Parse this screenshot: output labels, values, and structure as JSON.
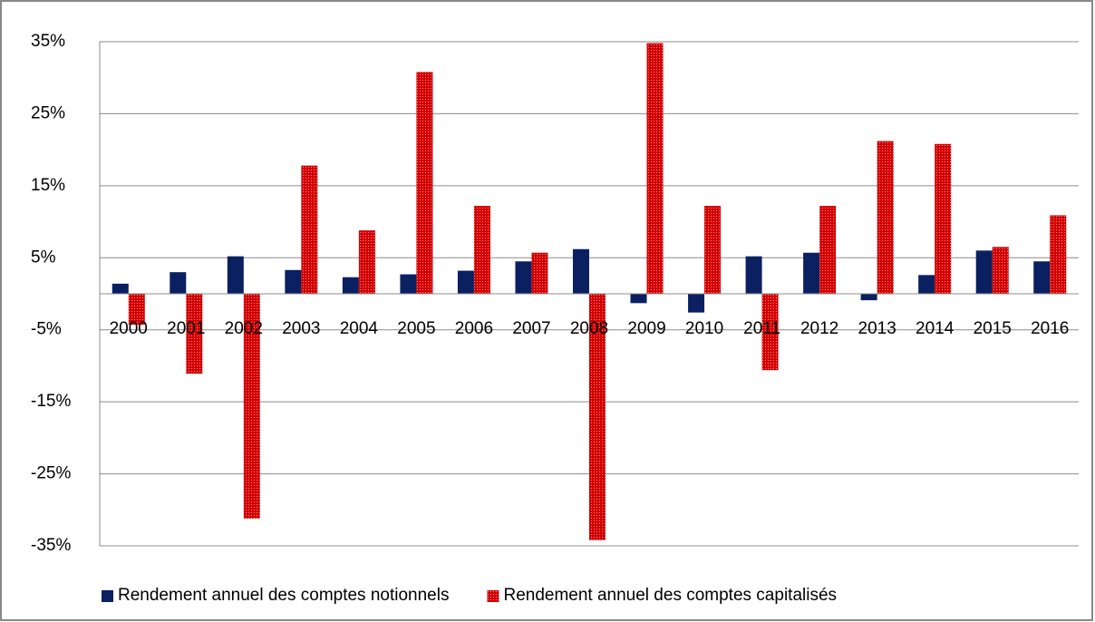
{
  "chart_data": {
    "type": "bar",
    "categories": [
      "2000",
      "2001",
      "2002",
      "2003",
      "2004",
      "2005",
      "2006",
      "2007",
      "2008",
      "2009",
      "2010",
      "2011",
      "2012",
      "2013",
      "2014",
      "2015",
      "2016"
    ],
    "series": [
      {
        "name": "Rendement annuel des comptes notionnels",
        "color": "#0b2060",
        "values": [
          1.4,
          3.0,
          5.2,
          3.3,
          2.3,
          2.7,
          3.2,
          4.5,
          6.2,
          -1.3,
          -2.6,
          5.2,
          5.7,
          -0.9,
          2.6,
          6.0,
          4.5
        ]
      },
      {
        "name": "Rendement annuel des comptes capitalisés",
        "color": "#d40000",
        "pattern": "dots",
        "values": [
          -4.3,
          -11.1,
          -31.2,
          17.8,
          8.8,
          30.8,
          12.2,
          5.7,
          -34.2,
          34.8,
          12.2,
          -10.6,
          12.2,
          21.2,
          20.8,
          6.5,
          10.9
        ]
      }
    ],
    "ylim": [
      -35,
      35
    ],
    "yticks": [
      {
        "value": -35,
        "label": "-35%"
      },
      {
        "value": -25,
        "label": "-25%"
      },
      {
        "value": -15,
        "label": "-15%"
      },
      {
        "value": -5,
        "label": "-5%"
      },
      {
        "value": 5,
        "label": "5%"
      },
      {
        "value": 15,
        "label": "15%"
      },
      {
        "value": 25,
        "label": "25%"
      },
      {
        "value": 35,
        "label": "35%"
      }
    ],
    "grid": true,
    "legend": "bottom"
  }
}
